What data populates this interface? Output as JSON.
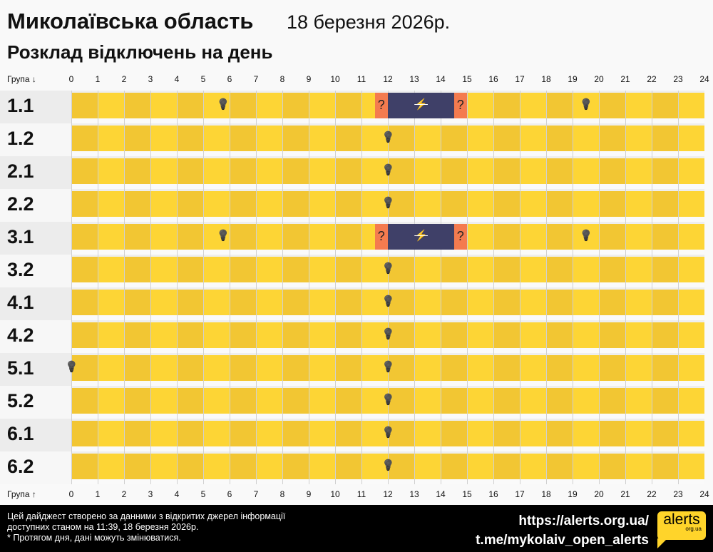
{
  "header": {
    "title": "Миколаївська область",
    "date": "18 березня 2026р.",
    "subtitle": "Розклад відключень на день"
  },
  "axis": {
    "top_label": "Група ↓",
    "bottom_label": "Група ↑",
    "hours": [
      "0",
      "1",
      "2",
      "3",
      "4",
      "5",
      "6",
      "7",
      "8",
      "9",
      "10",
      "11",
      "12",
      "13",
      "14",
      "15",
      "16",
      "17",
      "18",
      "19",
      "20",
      "21",
      "22",
      "23",
      "24"
    ]
  },
  "colors": {
    "on": "#fdd535",
    "on_alt": "#f2c633",
    "maybe": "#f47b4f",
    "off": "#3f4068"
  },
  "groups": [
    {
      "name": "1.1",
      "segments": [
        [
          11.5,
          12,
          "maybe"
        ],
        [
          12,
          14.5,
          "off"
        ],
        [
          14.5,
          15,
          "maybe"
        ]
      ],
      "icons": [
        [
          5.75,
          "bulb"
        ],
        [
          11.75,
          "?"
        ],
        [
          13.25,
          "no-power"
        ],
        [
          14.75,
          "?"
        ],
        [
          19.5,
          "bulb"
        ]
      ]
    },
    {
      "name": "1.2",
      "segments": [],
      "icons": [
        [
          12,
          "bulb"
        ]
      ]
    },
    {
      "name": "2.1",
      "segments": [],
      "icons": [
        [
          12,
          "bulb"
        ]
      ]
    },
    {
      "name": "2.2",
      "segments": [],
      "icons": [
        [
          12,
          "bulb"
        ]
      ]
    },
    {
      "name": "3.1",
      "segments": [
        [
          11.5,
          12,
          "maybe"
        ],
        [
          12,
          14.5,
          "off"
        ],
        [
          14.5,
          15,
          "maybe"
        ]
      ],
      "icons": [
        [
          5.75,
          "bulb"
        ],
        [
          11.75,
          "?"
        ],
        [
          13.25,
          "no-power"
        ],
        [
          14.75,
          "?"
        ],
        [
          19.5,
          "bulb"
        ]
      ]
    },
    {
      "name": "3.2",
      "segments": [],
      "icons": [
        [
          12,
          "bulb"
        ]
      ]
    },
    {
      "name": "4.1",
      "segments": [],
      "icons": [
        [
          12,
          "bulb"
        ]
      ]
    },
    {
      "name": "4.2",
      "segments": [],
      "icons": [
        [
          12,
          "bulb"
        ]
      ]
    },
    {
      "name": "5.1",
      "segments": [],
      "icons": [
        [
          0,
          "bulb"
        ],
        [
          12,
          "bulb"
        ]
      ]
    },
    {
      "name": "5.2",
      "segments": [],
      "icons": [
        [
          12,
          "bulb"
        ]
      ]
    },
    {
      "name": "6.1",
      "segments": [],
      "icons": [
        [
          12,
          "bulb"
        ]
      ]
    },
    {
      "name": "6.2",
      "segments": [],
      "icons": [
        [
          12,
          "bulb"
        ]
      ]
    }
  ],
  "footer": {
    "line1": "Цей дайджест створено за данними з відкритих джерел інформації",
    "line2": "доступних станом на 11:39, 18 березня 2026р.",
    "line3": "* Протягом дня, дані можуть змінюватися.",
    "link1": "https://alerts.org.ua/",
    "link2": "t.me/mykolaiv_open_alerts",
    "logo_text": "alerts",
    "logo_sub": "org.ua"
  }
}
